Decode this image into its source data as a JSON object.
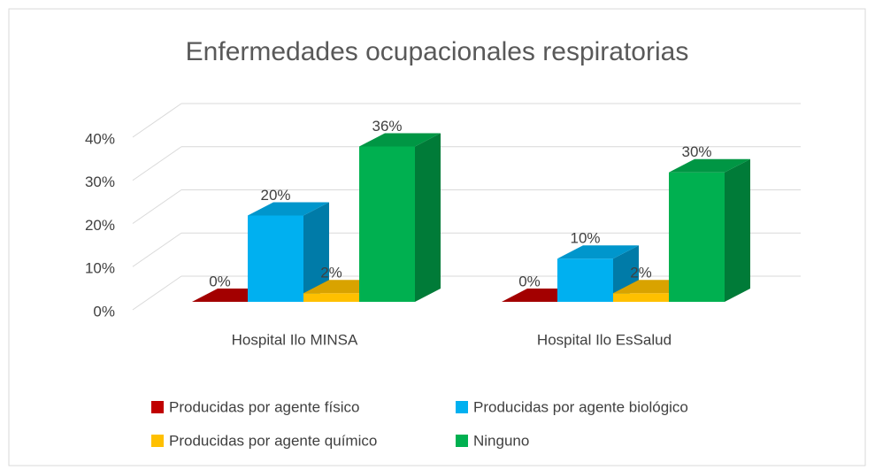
{
  "chart_data": {
    "type": "bar3d",
    "title": "Enfermedades ocupacionales respiratorias",
    "categories": [
      "Hospital Ilo MINSA",
      "Hospital Ilo EsSalud"
    ],
    "series": [
      {
        "name": "Producidas por agente físico",
        "color": "#c00000",
        "values": [
          0,
          0
        ],
        "value_labels": [
          "0%",
          "0%"
        ]
      },
      {
        "name": "Producidas por agente biológico",
        "color": "#00b0f0",
        "values": [
          20,
          10
        ],
        "value_labels": [
          "20%",
          "10%"
        ]
      },
      {
        "name": "Producidas por agente químico",
        "color": "#ffc000",
        "values": [
          2,
          2
        ],
        "value_labels": [
          "2%",
          "2%"
        ]
      },
      {
        "name": "Ninguno",
        "color": "#00b050",
        "values": [
          36,
          30
        ],
        "value_labels": [
          "36%",
          "30%"
        ]
      }
    ],
    "ylim": [
      0,
      40
    ],
    "yticks": [
      {
        "value": 0,
        "label": "0%"
      },
      {
        "value": 10,
        "label": "10%"
      },
      {
        "value": 20,
        "label": "20%"
      },
      {
        "value": 30,
        "label": "30%"
      },
      {
        "value": 40,
        "label": "40%"
      }
    ],
    "grid": true,
    "legend": "bottom"
  }
}
